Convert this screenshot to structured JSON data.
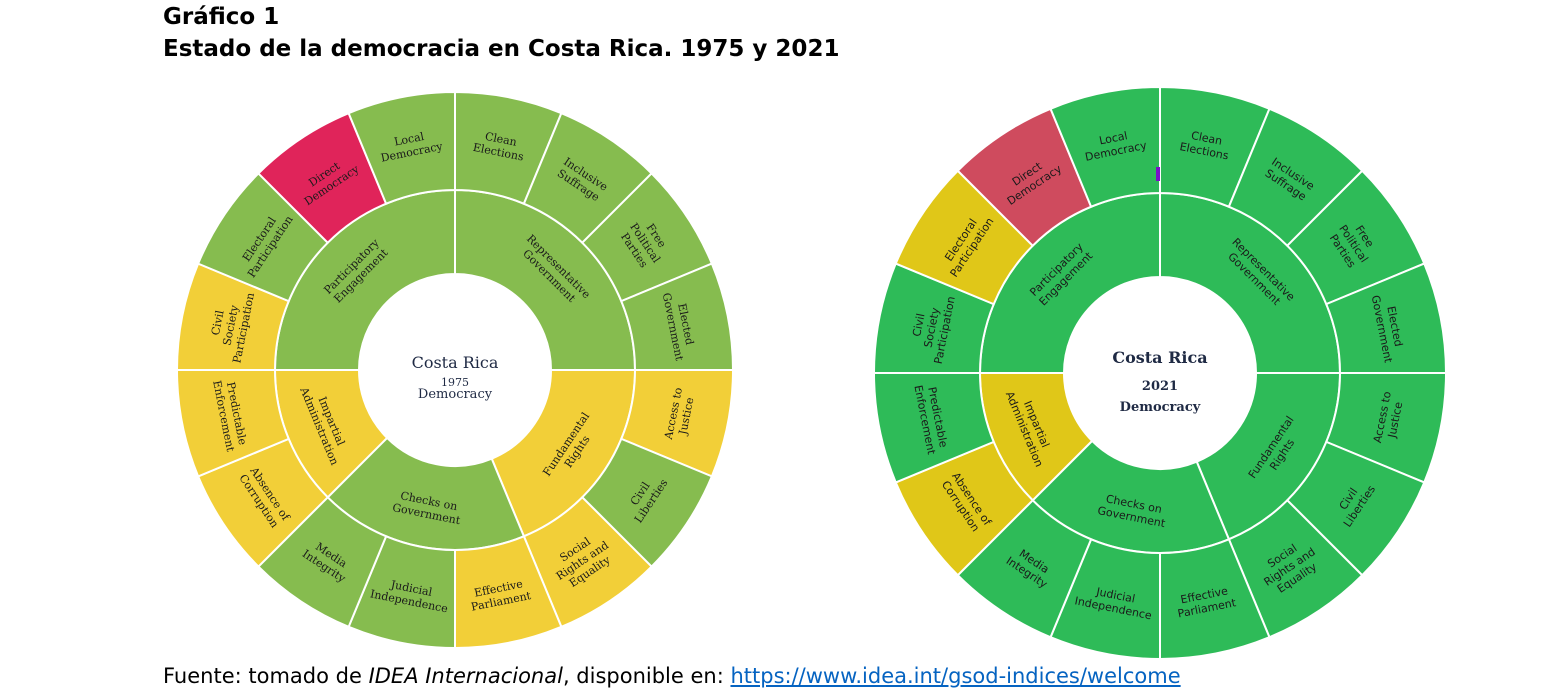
{
  "figure": {
    "title_line1": "Gráfico 1",
    "title_line2": "Estado de la democracia en Costa Rica. 1975 y 2021"
  },
  "source": {
    "prefix": "Fuente: tomado de ",
    "italic": "IDEA Internacional",
    "middle": ", disponible en: ",
    "link": "https://www.idea.int/gsod-indices/welcome"
  },
  "colors": {
    "green_light": "#86bc4f",
    "yellow": "#f2cf38",
    "red": "#e0245a",
    "green": "#2ebb58",
    "yellow_dark": "#e0c718",
    "red_muted": "#cf4b5e"
  },
  "chart_data": [
    {
      "type": "sunburst",
      "center": {
        "label": "Costa Rica",
        "year": "1975",
        "sub": "Democracy"
      },
      "inner": [
        {
          "label": "Representative Government",
          "children": 4,
          "color": "#86bc4f"
        },
        {
          "label": "Fundamental Rights",
          "children": 3,
          "color": "#f2cf38"
        },
        {
          "label": "Checks on Government",
          "children": 3,
          "color": "#86bc4f"
        },
        {
          "label": "Impartial Administration",
          "children": 2,
          "color": "#f2cf38"
        },
        {
          "label": "Participatory Engagement",
          "children": 4,
          "color": "#86bc4f"
        }
      ],
      "outer": [
        {
          "label": "Clean Elections",
          "color": "#86bc4f"
        },
        {
          "label": "Inclusive Suffrage",
          "color": "#86bc4f"
        },
        {
          "label": "Free Political Parties",
          "color": "#86bc4f"
        },
        {
          "label": "Elected Government",
          "color": "#86bc4f"
        },
        {
          "label": "Access to Justice",
          "color": "#f2cf38"
        },
        {
          "label": "Civil Liberties",
          "color": "#86bc4f"
        },
        {
          "label": "Social Rights and Equality",
          "color": "#f2cf38"
        },
        {
          "label": "Effective Parliament",
          "color": "#f2cf38"
        },
        {
          "label": "Judicial Independence",
          "color": "#86bc4f"
        },
        {
          "label": "Media Integrity",
          "color": "#86bc4f"
        },
        {
          "label": "Absence of Corruption",
          "color": "#f2cf38"
        },
        {
          "label": "Predictable Enforcement",
          "color": "#f2cf38"
        },
        {
          "label": "Civil Society Participation",
          "color": "#f2cf38"
        },
        {
          "label": "Electoral Participation",
          "color": "#86bc4f"
        },
        {
          "label": "Direct Democracy",
          "color": "#e0245a"
        },
        {
          "label": "Local Democracy",
          "color": "#86bc4f"
        }
      ]
    },
    {
      "type": "sunburst",
      "center": {
        "label": "Costa Rica",
        "year": "2021",
        "sub": "Democracy"
      },
      "inner": [
        {
          "label": "Representative Government",
          "children": 4,
          "color": "#2ebb58"
        },
        {
          "label": "Fundamental Rights",
          "children": 3,
          "color": "#2ebb58"
        },
        {
          "label": "Checks on Government",
          "children": 3,
          "color": "#2ebb58"
        },
        {
          "label": "Impartial Administration",
          "children": 2,
          "color": "#e0c718"
        },
        {
          "label": "Participatory Engagement",
          "children": 4,
          "color": "#2ebb58"
        }
      ],
      "outer": [
        {
          "label": "Clean Elections",
          "color": "#2ebb58"
        },
        {
          "label": "Inclusive Suffrage",
          "color": "#2ebb58"
        },
        {
          "label": "Free Political Parties",
          "color": "#2ebb58"
        },
        {
          "label": "Elected Government",
          "color": "#2ebb58"
        },
        {
          "label": "Access to Justice",
          "color": "#2ebb58"
        },
        {
          "label": "Civil Liberties",
          "color": "#2ebb58"
        },
        {
          "label": "Social Rights and Equality",
          "color": "#2ebb58"
        },
        {
          "label": "Effective Parliament",
          "color": "#2ebb58"
        },
        {
          "label": "Judicial Independence",
          "color": "#2ebb58"
        },
        {
          "label": "Media Integrity",
          "color": "#2ebb58"
        },
        {
          "label": "Absence of Corruption",
          "color": "#e0c718"
        },
        {
          "label": "Predictable Enforcement",
          "color": "#2ebb58"
        },
        {
          "label": "Civil Society Participation",
          "color": "#2ebb58"
        },
        {
          "label": "Electoral Participation",
          "color": "#e0c718"
        },
        {
          "label": "Direct Democracy",
          "color": "#cf4b5e"
        },
        {
          "label": "Local Democracy",
          "color": "#2ebb58"
        }
      ]
    }
  ]
}
